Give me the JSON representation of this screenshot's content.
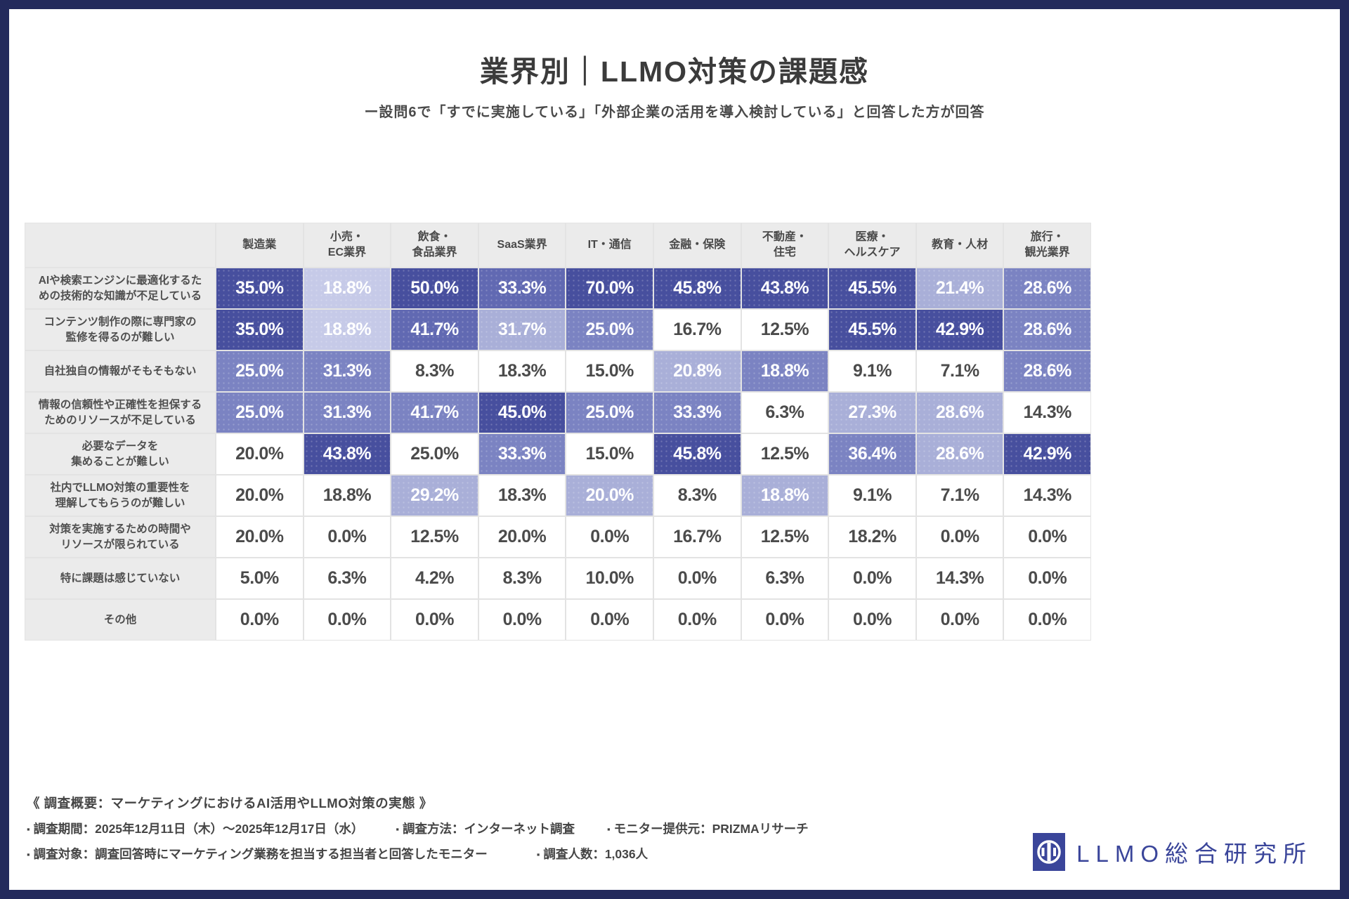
{
  "header": {
    "title": "業界別｜LLMO対策の課題感",
    "subtitle": "ー設問6で「すでに実施している」「外部企業の活用を導入検討している」と回答した方が回答"
  },
  "chart_data": {
    "type": "heatmap",
    "note": "cells = [display_value, shade_level 0-5]; level 0 = white, 5 = darkest indigo",
    "columns": [
      "製造業",
      "小売・\nEC業界",
      "飲食・\n食品業界",
      "SaaS業界",
      "IT・通信",
      "金融・保険",
      "不動産・\n住宅",
      "医療・\nヘルスケア",
      "教育・人材",
      "旅行・\n観光業界"
    ],
    "palette": {
      "0": "#ffffff",
      "1": "#c6cae8",
      "2": "#a9afd8",
      "3": "#7b83c2",
      "4": "#6169b2",
      "5": "#474f9e"
    },
    "rows": [
      {
        "label": "AIや検索エンジンに最適化するた\nめの技術的な知識が不足している",
        "cells": [
          [
            "35.0%",
            5
          ],
          [
            "18.8%",
            1
          ],
          [
            "50.0%",
            5
          ],
          [
            "33.3%",
            4
          ],
          [
            "70.0%",
            5
          ],
          [
            "45.8%",
            5
          ],
          [
            "43.8%",
            5
          ],
          [
            "45.5%",
            5
          ],
          [
            "21.4%",
            2
          ],
          [
            "28.6%",
            3
          ]
        ]
      },
      {
        "label": "コンテンツ制作の際に専門家の\n監修を得るのが難しい",
        "cells": [
          [
            "35.0%",
            5
          ],
          [
            "18.8%",
            1
          ],
          [
            "41.7%",
            4
          ],
          [
            "31.7%",
            2
          ],
          [
            "25.0%",
            3
          ],
          [
            "16.7%",
            0
          ],
          [
            "12.5%",
            0
          ],
          [
            "45.5%",
            5
          ],
          [
            "42.9%",
            5
          ],
          [
            "28.6%",
            3
          ]
        ]
      },
      {
        "label": "自社独自の情報がそもそもない",
        "cells": [
          [
            "25.0%",
            3
          ],
          [
            "31.3%",
            3
          ],
          [
            "8.3%",
            0
          ],
          [
            "18.3%",
            0
          ],
          [
            "15.0%",
            0
          ],
          [
            "20.8%",
            2
          ],
          [
            "18.8%",
            3
          ],
          [
            "9.1%",
            0
          ],
          [
            "7.1%",
            0
          ],
          [
            "28.6%",
            3
          ]
        ]
      },
      {
        "label": "情報の信頼性や正確性を担保する\nためのリソースが不足している",
        "cells": [
          [
            "25.0%",
            3
          ],
          [
            "31.3%",
            3
          ],
          [
            "41.7%",
            3
          ],
          [
            "45.0%",
            5
          ],
          [
            "25.0%",
            3
          ],
          [
            "33.3%",
            3
          ],
          [
            "6.3%",
            0
          ],
          [
            "27.3%",
            2
          ],
          [
            "28.6%",
            2
          ],
          [
            "14.3%",
            0
          ]
        ]
      },
      {
        "label": "必要なデータを\n集めることが難しい",
        "cells": [
          [
            "20.0%",
            0
          ],
          [
            "43.8%",
            5
          ],
          [
            "25.0%",
            0
          ],
          [
            "33.3%",
            3
          ],
          [
            "15.0%",
            0
          ],
          [
            "45.8%",
            5
          ],
          [
            "12.5%",
            0
          ],
          [
            "36.4%",
            3
          ],
          [
            "28.6%",
            2
          ],
          [
            "42.9%",
            5
          ]
        ]
      },
      {
        "label": "社内でLLMO対策の重要性を\n理解してもらうのが難しい",
        "cells": [
          [
            "20.0%",
            0
          ],
          [
            "18.8%",
            0
          ],
          [
            "29.2%",
            2
          ],
          [
            "18.3%",
            0
          ],
          [
            "20.0%",
            2
          ],
          [
            "8.3%",
            0
          ],
          [
            "18.8%",
            2
          ],
          [
            "9.1%",
            0
          ],
          [
            "7.1%",
            0
          ],
          [
            "14.3%",
            0
          ]
        ]
      },
      {
        "label": "対策を実施するための時間や\nリソースが限られている",
        "cells": [
          [
            "20.0%",
            0
          ],
          [
            "0.0%",
            0
          ],
          [
            "12.5%",
            0
          ],
          [
            "20.0%",
            0
          ],
          [
            "0.0%",
            0
          ],
          [
            "16.7%",
            0
          ],
          [
            "12.5%",
            0
          ],
          [
            "18.2%",
            0
          ],
          [
            "0.0%",
            0
          ],
          [
            "0.0%",
            0
          ]
        ]
      },
      {
        "label": "特に課題は感じていない",
        "cells": [
          [
            "5.0%",
            0
          ],
          [
            "6.3%",
            0
          ],
          [
            "4.2%",
            0
          ],
          [
            "8.3%",
            0
          ],
          [
            "10.0%",
            0
          ],
          [
            "0.0%",
            0
          ],
          [
            "6.3%",
            0
          ],
          [
            "0.0%",
            0
          ],
          [
            "14.3%",
            0
          ],
          [
            "0.0%",
            0
          ]
        ]
      },
      {
        "label": "その他",
        "cells": [
          [
            "0.0%",
            0
          ],
          [
            "0.0%",
            0
          ],
          [
            "0.0%",
            0
          ],
          [
            "0.0%",
            0
          ],
          [
            "0.0%",
            0
          ],
          [
            "0.0%",
            0
          ],
          [
            "0.0%",
            0
          ],
          [
            "0.0%",
            0
          ],
          [
            "0.0%",
            0
          ],
          [
            "0.0%",
            0
          ]
        ]
      }
    ]
  },
  "footer": {
    "heading": "《 調査概要：マーケティングにおけるAI活用やLLMO対策の実態 》",
    "bullet": "▪",
    "line2": [
      "調査期間：2025年12月11日（木）～2025年12月17日（水）",
      "調査方法：インターネット調査",
      "モニター提供元：PRIZMAリサーチ"
    ],
    "line3": [
      "調査対象：調査回答時にマーケティング業務を担当する担当者と回答したモニター",
      "調査人数：1,036人"
    ]
  },
  "logo": {
    "text": "LLMO総合研究所",
    "color": "#3a459a"
  },
  "colors": {
    "frame_border": "#232a5c",
    "header_cell_bg": "#ebebeb",
    "plain_text": "#4b4b4b",
    "tinted_text": "#ffffff"
  }
}
